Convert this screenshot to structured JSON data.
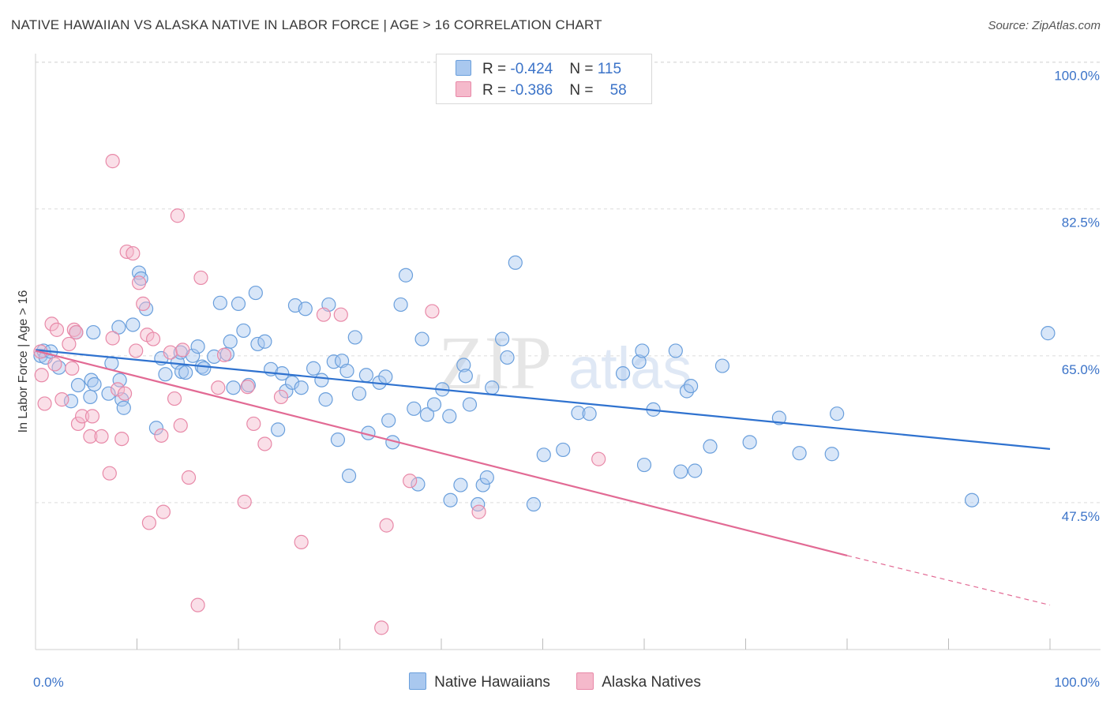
{
  "header": {
    "title": "NATIVE HAWAIIAN VS ALASKA NATIVE IN LABOR FORCE | AGE > 16 CORRELATION CHART",
    "source": "Source: ZipAtlas.com"
  },
  "watermark": {
    "zip": "ZIP",
    "atlas": "atlas"
  },
  "legend_stats": {
    "r_label": "R = ",
    "n_label": "N = ",
    "rows": [
      {
        "r": "-0.424",
        "n": "115",
        "color": "#a9c8ef"
      },
      {
        "r": "-0.386",
        "n": "58",
        "color": "#f5b9cb"
      }
    ]
  },
  "colors": {
    "blue_fill": "#a9c8ef",
    "blue_stroke": "#6a9fdc",
    "blue_line": "#2f72cf",
    "pink_fill": "#f5b9cb",
    "pink_stroke": "#e889a8",
    "pink_line": "#e26a94",
    "tick_text": "#3b73c8",
    "grid": "#dcdcdc"
  },
  "chart_data": {
    "type": "scatter",
    "ylabel": "In Labor Force | Age > 16",
    "xlim": [
      0,
      100
    ],
    "ylim": [
      30,
      101
    ],
    "y_ticks": [
      {
        "value": 100,
        "label": "100.0%"
      },
      {
        "value": 82.5,
        "label": "82.5%"
      },
      {
        "value": 65,
        "label": "65.0%"
      },
      {
        "value": 47.5,
        "label": "47.5%"
      }
    ],
    "x_tick_labels": [
      {
        "value": 0,
        "label": "0.0%"
      },
      {
        "value": 100,
        "label": "100.0%"
      }
    ],
    "x_minor_ticks": [
      10,
      20,
      30,
      40,
      50,
      60,
      70,
      80,
      90,
      100
    ],
    "grid": true,
    "legend_position": "top-center",
    "series": [
      {
        "name": "Native Hawaiians",
        "trend": {
          "x0": 0,
          "y0": 65.7,
          "x1": 100,
          "y1": 53.9
        },
        "points": [
          [
            0.5,
            65.0
          ],
          [
            0.8,
            65.6
          ],
          [
            1.0,
            64.8
          ],
          [
            1.5,
            65.5
          ],
          [
            2.3,
            63.6
          ],
          [
            3.5,
            59.6
          ],
          [
            4.0,
            67.8
          ],
          [
            4.2,
            61.5
          ],
          [
            5.5,
            62.1
          ],
          [
            5.8,
            61.6
          ],
          [
            5.4,
            60.1
          ],
          [
            5.7,
            67.8
          ],
          [
            7.2,
            60.5
          ],
          [
            7.5,
            64.1
          ],
          [
            8.3,
            62.1
          ],
          [
            8.5,
            59.8
          ],
          [
            8.7,
            58.8
          ],
          [
            8.2,
            68.4
          ],
          [
            9.6,
            68.7
          ],
          [
            10.2,
            74.9
          ],
          [
            10.4,
            74.2
          ],
          [
            10.9,
            70.6
          ],
          [
            11.9,
            56.4
          ],
          [
            12.4,
            64.7
          ],
          [
            12.8,
            62.8
          ],
          [
            14.0,
            64.2
          ],
          [
            14.4,
            63.1
          ],
          [
            14.3,
            65.4
          ],
          [
            14.8,
            63.0
          ],
          [
            15.5,
            65.0
          ],
          [
            16.0,
            66.1
          ],
          [
            16.4,
            63.7
          ],
          [
            16.6,
            63.5
          ],
          [
            17.6,
            64.9
          ],
          [
            18.2,
            71.3
          ],
          [
            18.9,
            65.2
          ],
          [
            19.2,
            66.7
          ],
          [
            19.5,
            61.2
          ],
          [
            20.0,
            71.2
          ],
          [
            20.5,
            68.0
          ],
          [
            21.0,
            61.5
          ],
          [
            21.7,
            72.5
          ],
          [
            21.9,
            66.4
          ],
          [
            22.6,
            66.7
          ],
          [
            23.2,
            63.4
          ],
          [
            23.9,
            56.2
          ],
          [
            24.3,
            62.9
          ],
          [
            24.7,
            60.8
          ],
          [
            25.3,
            61.8
          ],
          [
            25.6,
            71.0
          ],
          [
            26.2,
            61.2
          ],
          [
            26.6,
            70.6
          ],
          [
            27.4,
            63.5
          ],
          [
            28.2,
            62.1
          ],
          [
            28.6,
            59.8
          ],
          [
            28.9,
            71.1
          ],
          [
            29.4,
            64.3
          ],
          [
            29.8,
            55.0
          ],
          [
            30.2,
            64.4
          ],
          [
            30.7,
            63.2
          ],
          [
            30.9,
            50.7
          ],
          [
            31.5,
            67.2
          ],
          [
            31.9,
            60.5
          ],
          [
            32.6,
            62.7
          ],
          [
            32.8,
            55.8
          ],
          [
            33.9,
            61.8
          ],
          [
            34.5,
            62.5
          ],
          [
            34.8,
            57.3
          ],
          [
            35.2,
            54.7
          ],
          [
            36.0,
            71.1
          ],
          [
            36.5,
            74.6
          ],
          [
            37.3,
            58.7
          ],
          [
            37.7,
            49.7
          ],
          [
            38.1,
            67.0
          ],
          [
            38.6,
            58.0
          ],
          [
            39.3,
            59.2
          ],
          [
            40.1,
            61.0
          ],
          [
            40.8,
            57.8
          ],
          [
            40.9,
            47.8
          ],
          [
            41.9,
            49.6
          ],
          [
            42.2,
            63.9
          ],
          [
            42.4,
            62.6
          ],
          [
            42.8,
            59.2
          ],
          [
            43.6,
            47.3
          ],
          [
            44.1,
            49.6
          ],
          [
            44.5,
            50.5
          ],
          [
            45.0,
            61.2
          ],
          [
            46.0,
            67.0
          ],
          [
            46.5,
            64.8
          ],
          [
            47.3,
            76.1
          ],
          [
            49.1,
            47.3
          ],
          [
            50.1,
            53.2
          ],
          [
            52.0,
            53.8
          ],
          [
            53.5,
            58.2
          ],
          [
            54.6,
            58.1
          ],
          [
            57.9,
            62.9
          ],
          [
            59.5,
            64.3
          ],
          [
            59.8,
            65.6
          ],
          [
            60.0,
            52.0
          ],
          [
            60.9,
            58.6
          ],
          [
            63.1,
            65.6
          ],
          [
            63.6,
            51.2
          ],
          [
            64.2,
            60.8
          ],
          [
            64.6,
            61.4
          ],
          [
            65.0,
            51.3
          ],
          [
            66.5,
            54.2
          ],
          [
            67.7,
            63.8
          ],
          [
            70.4,
            54.7
          ],
          [
            73.3,
            57.6
          ],
          [
            75.3,
            53.4
          ],
          [
            78.5,
            53.3
          ],
          [
            79.0,
            58.1
          ],
          [
            92.3,
            47.8
          ],
          [
            99.8,
            67.7
          ]
        ]
      },
      {
        "name": "Alaska Natives",
        "trend": {
          "x0": 0,
          "y0": 65.6,
          "x1": 80,
          "y1": 41.2
        },
        "trend_dashed": {
          "x0": 80,
          "y0": 41.2,
          "x1": 100,
          "y1": 35.3
        },
        "points": [
          [
            0.5,
            65.5
          ],
          [
            0.6,
            62.7
          ],
          [
            0.9,
            59.3
          ],
          [
            1.6,
            68.8
          ],
          [
            1.9,
            64.0
          ],
          [
            2.1,
            68.1
          ],
          [
            2.6,
            59.8
          ],
          [
            3.3,
            66.4
          ],
          [
            3.6,
            63.5
          ],
          [
            3.8,
            68.1
          ],
          [
            4.0,
            67.8
          ],
          [
            4.2,
            56.9
          ],
          [
            4.6,
            57.8
          ],
          [
            5.4,
            55.4
          ],
          [
            5.6,
            57.8
          ],
          [
            6.5,
            55.4
          ],
          [
            7.3,
            51.0
          ],
          [
            7.6,
            67.1
          ],
          [
            7.6,
            88.2
          ],
          [
            8.1,
            61.0
          ],
          [
            8.5,
            55.1
          ],
          [
            8.8,
            60.5
          ],
          [
            9.0,
            77.4
          ],
          [
            9.6,
            77.2
          ],
          [
            9.9,
            65.6
          ],
          [
            10.2,
            73.7
          ],
          [
            10.6,
            71.2
          ],
          [
            11.0,
            67.5
          ],
          [
            11.2,
            45.1
          ],
          [
            11.6,
            67.0
          ],
          [
            12.4,
            55.5
          ],
          [
            12.6,
            46.4
          ],
          [
            13.3,
            65.4
          ],
          [
            13.7,
            59.9
          ],
          [
            14.0,
            81.7
          ],
          [
            14.3,
            56.7
          ],
          [
            14.5,
            65.7
          ],
          [
            15.1,
            50.5
          ],
          [
            16.0,
            35.3
          ],
          [
            16.3,
            74.3
          ],
          [
            18.0,
            61.2
          ],
          [
            18.6,
            65.1
          ],
          [
            20.6,
            47.6
          ],
          [
            20.9,
            61.3
          ],
          [
            21.5,
            56.9
          ],
          [
            22.6,
            54.5
          ],
          [
            24.2,
            60.1
          ],
          [
            26.2,
            42.8
          ],
          [
            28.4,
            69.9
          ],
          [
            30.1,
            69.9
          ],
          [
            34.1,
            32.6
          ],
          [
            34.6,
            44.8
          ],
          [
            36.9,
            50.1
          ],
          [
            39.1,
            70.3
          ],
          [
            43.7,
            46.4
          ],
          [
            55.5,
            52.7
          ]
        ]
      }
    ]
  },
  "bottom_legend": [
    {
      "label": "Native Hawaiians",
      "color": "#a9c8ef"
    },
    {
      "label": "Alaska Natives",
      "color": "#f5b9cb"
    }
  ]
}
